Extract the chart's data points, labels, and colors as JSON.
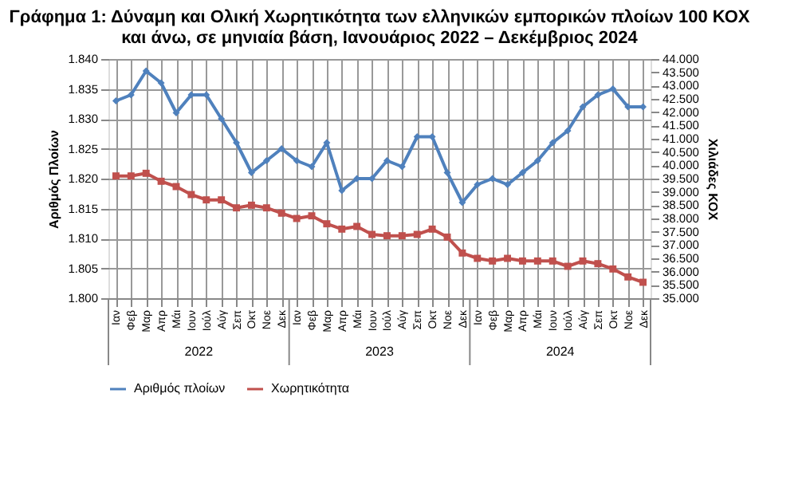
{
  "chart_data": {
    "type": "line",
    "title": [
      "Γράφημα 1: Δύναμη και Ολική Χωρητικότητα των ελληνικών εμπορικών πλοίων 100 ΚΟΧ",
      "και άνω, σε μηνιαία βάση, Ιανουάριος 2022 – Δεκέμβριος 2024"
    ],
    "categories": [
      "Ιαν",
      "Φεβ",
      "Μαρ",
      "Απρ",
      "Μάι",
      "Ιουν",
      "Ιούλ",
      "Αύγ",
      "Σεπ",
      "Οκτ",
      "Νοε",
      "Δεκ",
      "Ιαν",
      "Φεβ",
      "Μαρ",
      "Απρ",
      "Μάι",
      "Ιουν",
      "Ιούλ",
      "Αύγ",
      "Σεπ",
      "Οκτ",
      "Νοε",
      "Δεκ",
      "Ιαν",
      "Φεβ",
      "Μαρ",
      "Απρ",
      "Μάι",
      "Ιουν",
      "Ιούλ",
      "Αύγ",
      "Σεπ",
      "Οκτ",
      "Νοε",
      "Δεκ"
    ],
    "annotations": [
      "2022",
      "2023",
      "2024"
    ],
    "ylabel": "Αριθμός Πλοίων",
    "y2label": "Χιλιάδες ΚΟΧ",
    "ylim": [
      1800,
      1840
    ],
    "yticks": [
      {
        "value": 1800,
        "label": "1.800"
      },
      {
        "value": 1805,
        "label": "1.805"
      },
      {
        "value": 1810,
        "label": "1.810"
      },
      {
        "value": 1815,
        "label": "1.815"
      },
      {
        "value": 1820,
        "label": "1.820"
      },
      {
        "value": 1825,
        "label": "1.825"
      },
      {
        "value": 1830,
        "label": "1.830"
      },
      {
        "value": 1835,
        "label": "1.835"
      },
      {
        "value": 1840,
        "label": "1.840"
      }
    ],
    "y2lim": [
      35000,
      44000
    ],
    "y2ticks": [
      {
        "value": 35000,
        "label": "35.000"
      },
      {
        "value": 35500,
        "label": "35.500"
      },
      {
        "value": 36000,
        "label": "36.000"
      },
      {
        "value": 36500,
        "label": "36.500"
      },
      {
        "value": 37000,
        "label": "37.000"
      },
      {
        "value": 37500,
        "label": "37.500"
      },
      {
        "value": 38000,
        "label": "38.000"
      },
      {
        "value": 38500,
        "label": "38.500"
      },
      {
        "value": 39000,
        "label": "39.000"
      },
      {
        "value": 39500,
        "label": "39.500"
      },
      {
        "value": 40000,
        "label": "40.000"
      },
      {
        "value": 40500,
        "label": "40.500"
      },
      {
        "value": 41000,
        "label": "41.000"
      },
      {
        "value": 41500,
        "label": "41.500"
      },
      {
        "value": 42000,
        "label": "42.000"
      },
      {
        "value": 42500,
        "label": "42.500"
      },
      {
        "value": 43000,
        "label": "43.000"
      },
      {
        "value": 43500,
        "label": "43.500"
      },
      {
        "value": 44000,
        "label": "44.000"
      }
    ],
    "grid": true,
    "legend": "bottom",
    "line_style": "solid",
    "series": [
      {
        "name": "Αριθμός πλοίων",
        "color": "#4f81bd",
        "marker": "diamond",
        "values": [
          1833,
          1834,
          1838,
          1836,
          1831,
          1834,
          1834,
          1830,
          1826,
          1821,
          1823,
          1825,
          1823,
          1822,
          1826,
          1818,
          1820,
          1820,
          1823,
          1822,
          1827,
          1827,
          1821,
          1816,
          1819,
          1820,
          1819,
          1821,
          1823,
          1826,
          1828,
          1832,
          1834,
          1835,
          1832,
          1832
        ]
      },
      {
        "name": "Χωρητικότητα",
        "color": "#c0504d",
        "marker": "square",
        "axis": "y2",
        "values": [
          39600,
          39600,
          39700,
          39400,
          39200,
          38900,
          38700,
          38700,
          38400,
          38500,
          38400,
          38200,
          38000,
          38100,
          37800,
          37600,
          37700,
          37400,
          37350,
          37350,
          37400,
          37600,
          37300,
          36700,
          36500,
          36400,
          36500,
          36400,
          36400,
          36400,
          36200,
          36400,
          36300,
          36100,
          35800,
          35600
        ]
      }
    ]
  }
}
